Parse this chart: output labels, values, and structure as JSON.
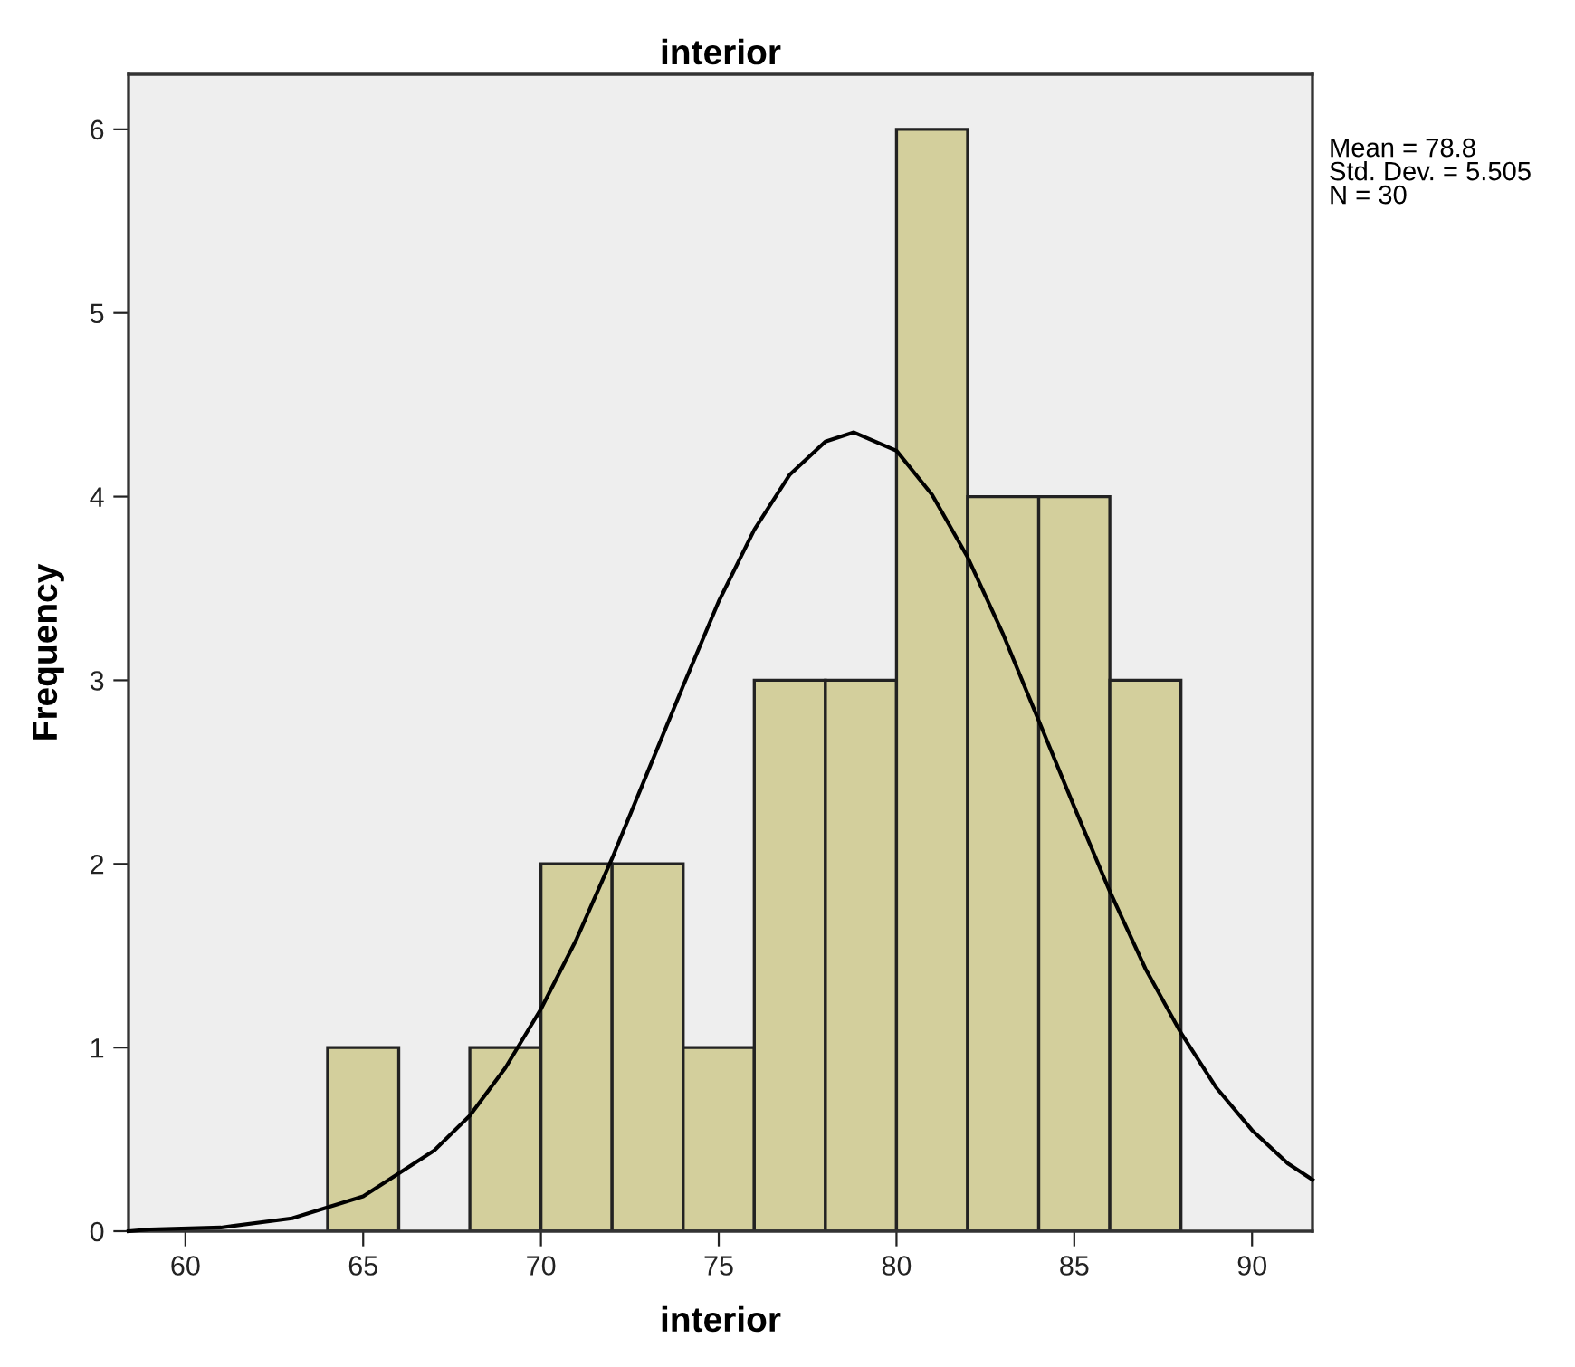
{
  "chart_data": {
    "type": "histogram",
    "title": "interior",
    "xlabel": "interior",
    "ylabel": "Frequency",
    "bins": [
      64,
      66,
      68,
      70,
      72,
      74,
      76,
      78,
      80,
      82,
      84,
      86,
      88
    ],
    "values": [
      1,
      0,
      1,
      2,
      2,
      1,
      3,
      3,
      6,
      4,
      4,
      3
    ],
    "color": "#d3cf9c",
    "series": [
      {
        "type": "line",
        "color": "#000000",
        "x": [
          58.4,
          59,
          61,
          63,
          65,
          67,
          68,
          69,
          70,
          71,
          72,
          73,
          74,
          75,
          76,
          77,
          78,
          78.8,
          80,
          81,
          82,
          83,
          84,
          85,
          86,
          87,
          88,
          89,
          90,
          91,
          91.7
        ],
        "values": [
          0.0,
          0.01,
          0.02,
          0.07,
          0.19,
          0.44,
          0.63,
          0.89,
          1.21,
          1.59,
          2.03,
          2.5,
          2.97,
          3.43,
          3.82,
          4.12,
          4.3,
          4.35,
          4.25,
          4.01,
          3.67,
          3.25,
          2.78,
          2.31,
          1.85,
          1.43,
          1.08,
          0.78,
          0.55,
          0.37,
          0.28
        ]
      }
    ],
    "xlim": [
      58.4,
      91.7
    ],
    "ylim": [
      0,
      6.3
    ],
    "xticks": [
      60,
      65,
      70,
      75,
      80,
      85,
      90
    ],
    "yticks": [
      0,
      1,
      2,
      3,
      4,
      5,
      6
    ],
    "annotations": [
      "Mean = 78.8",
      "Std. Dev. = 5.505",
      "N = 30"
    ],
    "grid": false,
    "legend": false
  }
}
